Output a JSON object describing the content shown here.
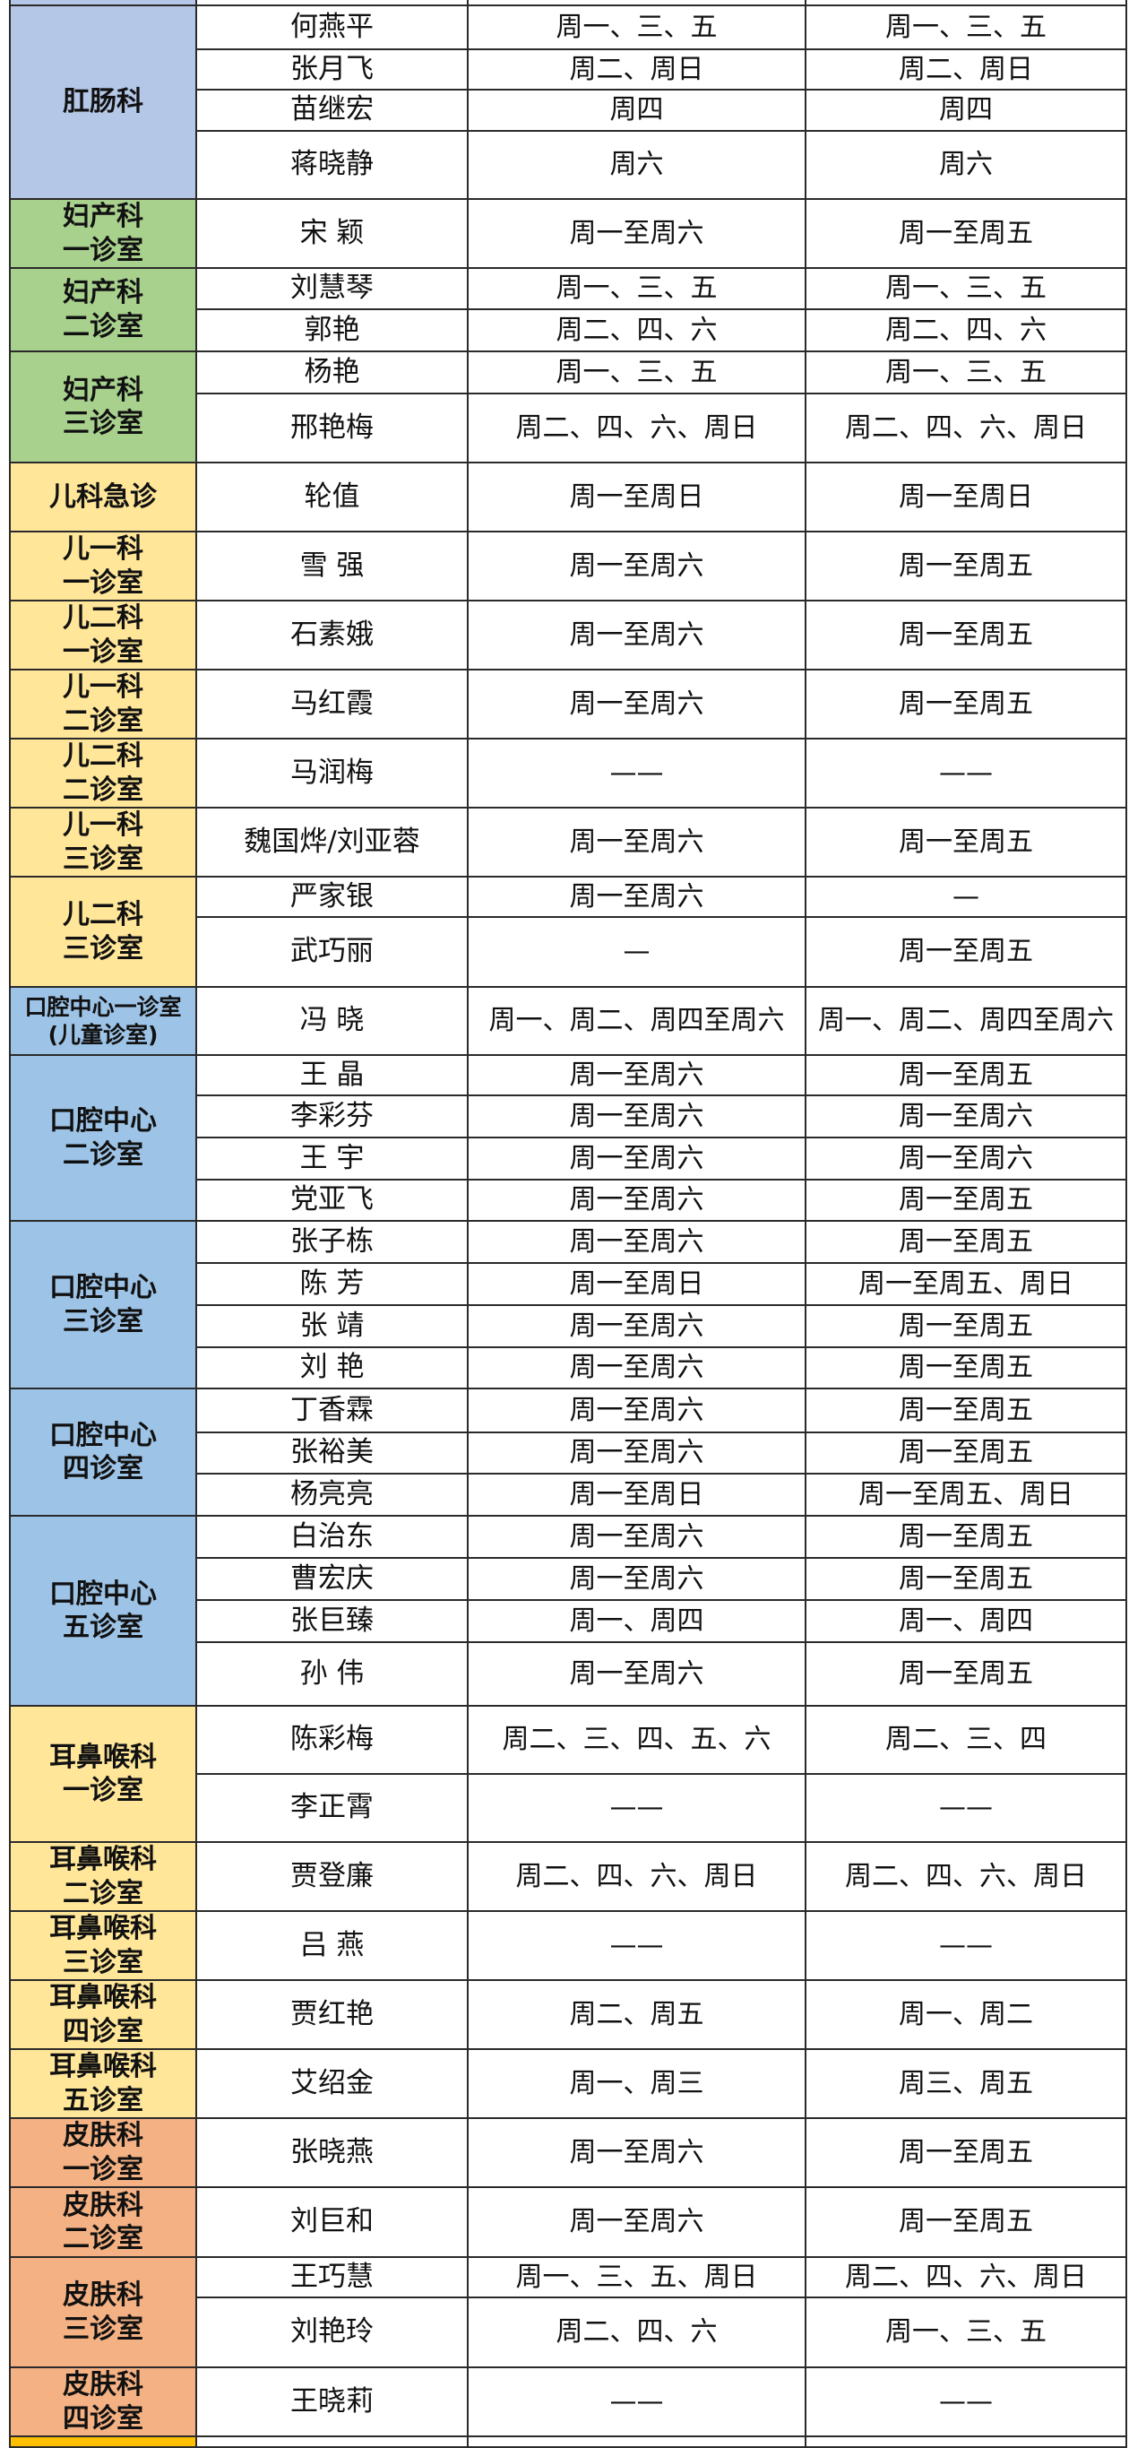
{
  "colors": {
    "blue_light": "#b4c7e7",
    "blue": "#9dc3e6",
    "green": "#a9d18e",
    "yellow": "#ffe699",
    "orange": "#f4b183",
    "gold": "#ffc000"
  },
  "groups": [
    {
      "dept": "肛肠科",
      "color": "blue_light",
      "rows": [
        {
          "name": "何燕平",
          "a": "周一、三、五",
          "b": "周一、三、五"
        },
        {
          "name": "张月飞",
          "a": "周二、周日",
          "b": "周二、周日"
        },
        {
          "name": "苗继宏",
          "a": "周四",
          "b": "周四"
        },
        {
          "name": "蒋晓静",
          "a": "周六",
          "b": "周六"
        }
      ]
    },
    {
      "dept": "妇产科\n一诊室",
      "color": "green",
      "rows": [
        {
          "name": "宋 颖",
          "a": "周一至周六",
          "b": "周一至周五"
        }
      ]
    },
    {
      "dept": "妇产科\n二诊室",
      "color": "green",
      "rows": [
        {
          "name": "刘慧琴",
          "a": "周一、三、五",
          "b": "周一、三、五"
        },
        {
          "name": "郭艳",
          "a": "周二、四、六",
          "b": "周二、四、六"
        }
      ]
    },
    {
      "dept": "妇产科\n三诊室",
      "color": "green",
      "rows": [
        {
          "name": "杨艳",
          "a": "周一、三、五",
          "b": "周一、三、五"
        },
        {
          "name": "邢艳梅",
          "a": "周二、四、六、周日",
          "b": "周二、四、六、周日"
        }
      ]
    },
    {
      "dept": "儿科急诊",
      "color": "yellow",
      "rows": [
        {
          "name": "轮值",
          "a": "周一至周日",
          "b": "周一至周日"
        }
      ]
    },
    {
      "dept": "儿一科\n一诊室",
      "color": "yellow",
      "rows": [
        {
          "name": "雪 强",
          "a": "周一至周六",
          "b": "周一至周五"
        }
      ]
    },
    {
      "dept": "儿二科\n一诊室",
      "color": "yellow",
      "rows": [
        {
          "name": "石素娥",
          "a": "周一至周六",
          "b": "周一至周五"
        }
      ]
    },
    {
      "dept": "儿一科\n二诊室",
      "color": "yellow",
      "rows": [
        {
          "name": "马红霞",
          "a": "周一至周六",
          "b": "周一至周五"
        }
      ]
    },
    {
      "dept": "儿二科\n二诊室",
      "color": "yellow",
      "rows": [
        {
          "name": "马润梅",
          "a": "——",
          "b": "——"
        }
      ]
    },
    {
      "dept": "儿一科\n三诊室",
      "color": "yellow",
      "rows": [
        {
          "name": "魏国烨/刘亚蓉",
          "a": "周一至周六",
          "b": "周一至周五"
        }
      ]
    },
    {
      "dept": "儿二科\n三诊室",
      "color": "yellow",
      "rows": [
        {
          "name": "严家银",
          "a": "周一至周六",
          "b": "—"
        },
        {
          "name": "武巧丽",
          "a": "—",
          "b": "周一至周五"
        }
      ]
    },
    {
      "dept": "口腔中心一诊室\n(儿童诊室)",
      "color": "blue",
      "small": true,
      "rows": [
        {
          "name": "冯 晓",
          "a": "周一、周二、周四至周六",
          "b": "周一、周二、周四至周六"
        }
      ]
    },
    {
      "dept": "口腔中心\n二诊室",
      "color": "blue",
      "rows": [
        {
          "name": "王 晶",
          "a": "周一至周六",
          "b": "周一至周五"
        },
        {
          "name": "李彩芬",
          "a": "周一至周六",
          "b": "周一至周六"
        },
        {
          "name": "王 宇",
          "a": "周一至周六",
          "b": "周一至周六"
        },
        {
          "name": "党亚飞",
          "a": "周一至周六",
          "b": "周一至周五"
        }
      ]
    },
    {
      "dept": "口腔中心\n三诊室",
      "color": "blue",
      "rows": [
        {
          "name": "张子栋",
          "a": "周一至周六",
          "b": "周一至周五"
        },
        {
          "name": "陈 芳",
          "a": "周一至周日",
          "b": "周一至周五、周日"
        },
        {
          "name": "张 靖",
          "a": "周一至周六",
          "b": "周一至周五"
        },
        {
          "name": "刘 艳",
          "a": "周一至周六",
          "b": "周一至周五"
        }
      ]
    },
    {
      "dept": "口腔中心\n四诊室",
      "color": "blue",
      "rows": [
        {
          "name": "丁香霖",
          "a": "周一至周六",
          "b": "周一至周五"
        },
        {
          "name": "张裕美",
          "a": "周一至周六",
          "b": "周一至周五"
        },
        {
          "name": "杨亮亮",
          "a": "周一至周日",
          "b": "周一至周五、周日"
        }
      ]
    },
    {
      "dept": "口腔中心\n五诊室",
      "color": "blue",
      "rows": [
        {
          "name": "白治东",
          "a": "周一至周六",
          "b": "周一至周五"
        },
        {
          "name": "曹宏庆",
          "a": "周一至周六",
          "b": "周一至周五"
        },
        {
          "name": "张巨臻",
          "a": "周一、周四",
          "b": "周一、周四"
        },
        {
          "name": "孙 伟",
          "a": "周一至周六",
          "b": "周一至周五"
        }
      ]
    },
    {
      "dept": "耳鼻喉科\n一诊室",
      "color": "yellow",
      "rows": [
        {
          "name": "陈彩梅",
          "a": "周二、三、四、五、六",
          "b": "周二、三、四"
        },
        {
          "name": "李正霄",
          "a": "——",
          "b": "——"
        }
      ]
    },
    {
      "dept": "耳鼻喉科\n二诊室",
      "color": "yellow",
      "rows": [
        {
          "name": "贾登廉",
          "a": "周二、四、六、周日",
          "b": "周二、四、六、周日"
        }
      ]
    },
    {
      "dept": "耳鼻喉科\n三诊室",
      "color": "yellow",
      "rows": [
        {
          "name": "吕 燕",
          "a": "——",
          "b": "——"
        }
      ]
    },
    {
      "dept": "耳鼻喉科\n四诊室",
      "color": "yellow",
      "rows": [
        {
          "name": "贾红艳",
          "a": "周二、周五",
          "b": "周一、周二"
        }
      ]
    },
    {
      "dept": "耳鼻喉科\n五诊室",
      "color": "yellow",
      "rows": [
        {
          "name": "艾绍金",
          "a": "周一、周三",
          "b": "周三、周五"
        }
      ]
    },
    {
      "dept": "皮肤科\n一诊室",
      "color": "orange",
      "rows": [
        {
          "name": "张晓燕",
          "a": "周一至周六",
          "b": "周一至周五"
        }
      ]
    },
    {
      "dept": "皮肤科\n二诊室",
      "color": "orange",
      "rows": [
        {
          "name": "刘巨和",
          "a": "周一至周六",
          "b": "周一至周五"
        }
      ]
    },
    {
      "dept": "皮肤科\n三诊室",
      "color": "orange",
      "rows": [
        {
          "name": "王巧慧",
          "a": "周一、三、五、周日",
          "b": "周二、四、六、周日"
        },
        {
          "name": "刘艳玲",
          "a": "周二、四、六",
          "b": "周一、三、五"
        }
      ]
    },
    {
      "dept": "皮肤科\n四诊室",
      "color": "orange",
      "rows": [
        {
          "name": "王晓莉",
          "a": "——",
          "b": "——"
        }
      ]
    }
  ]
}
